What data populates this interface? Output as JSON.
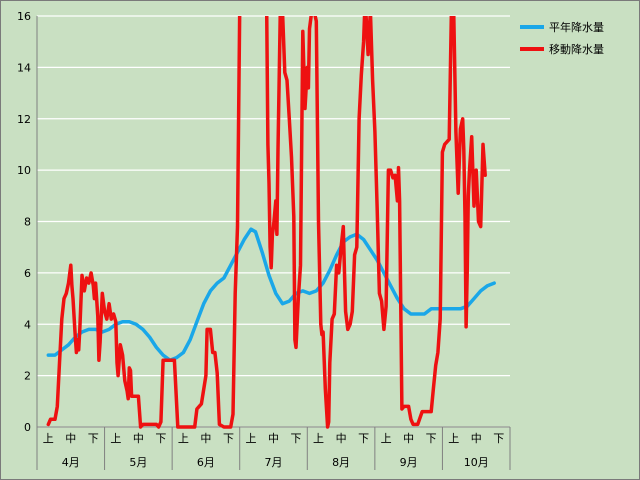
{
  "chart_data": {
    "type": "line",
    "ylim": [
      0,
      16
    ],
    "yticks": [
      0,
      2,
      4,
      6,
      8,
      10,
      12,
      14,
      16
    ],
    "grid": true,
    "legend_position": "top-right",
    "x_sub_labels": [
      "上",
      "中",
      "下",
      "上",
      "中",
      "下",
      "上",
      "中",
      "下",
      "上",
      "中",
      "下",
      "上",
      "中",
      "下",
      "上",
      "中",
      "下",
      "上",
      "中",
      "下"
    ],
    "x_month_labels": [
      "4月",
      "5月",
      "6月",
      "7月",
      "8月",
      "9月",
      "10月"
    ],
    "x_count": 21,
    "series": [
      {
        "name": "平年降水量",
        "color": "#1aa7e8",
        "points": [
          [
            0,
            2.8
          ],
          [
            0.3,
            2.8
          ],
          [
            0.6,
            3.0
          ],
          [
            0.9,
            3.2
          ],
          [
            1.2,
            3.5
          ],
          [
            1.5,
            3.7
          ],
          [
            1.8,
            3.8
          ],
          [
            2.1,
            3.8
          ],
          [
            2.4,
            3.7
          ],
          [
            2.7,
            3.8
          ],
          [
            3.0,
            4.0
          ],
          [
            3.3,
            4.1
          ],
          [
            3.6,
            4.1
          ],
          [
            3.9,
            4.0
          ],
          [
            4.2,
            3.8
          ],
          [
            4.5,
            3.5
          ],
          [
            4.8,
            3.1
          ],
          [
            5.1,
            2.8
          ],
          [
            5.4,
            2.6
          ],
          [
            5.7,
            2.7
          ],
          [
            6.0,
            2.9
          ],
          [
            6.3,
            3.4
          ],
          [
            6.6,
            4.1
          ],
          [
            6.9,
            4.8
          ],
          [
            7.2,
            5.3
          ],
          [
            7.5,
            5.6
          ],
          [
            7.8,
            5.8
          ],
          [
            8.1,
            6.3
          ],
          [
            8.4,
            6.8
          ],
          [
            8.7,
            7.3
          ],
          [
            9.0,
            7.7
          ],
          [
            9.2,
            7.6
          ],
          [
            9.5,
            6.8
          ],
          [
            9.8,
            5.9
          ],
          [
            10.1,
            5.2
          ],
          [
            10.4,
            4.8
          ],
          [
            10.7,
            4.9
          ],
          [
            11.0,
            5.2
          ],
          [
            11.3,
            5.3
          ],
          [
            11.6,
            5.2
          ],
          [
            11.9,
            5.3
          ],
          [
            12.2,
            5.6
          ],
          [
            12.5,
            6.1
          ],
          [
            12.8,
            6.7
          ],
          [
            13.1,
            7.2
          ],
          [
            13.4,
            7.4
          ],
          [
            13.7,
            7.5
          ],
          [
            14.0,
            7.3
          ],
          [
            14.3,
            6.9
          ],
          [
            14.6,
            6.5
          ],
          [
            14.9,
            6.0
          ],
          [
            15.2,
            5.5
          ],
          [
            15.5,
            5.0
          ],
          [
            15.8,
            4.6
          ],
          [
            16.1,
            4.4
          ],
          [
            16.4,
            4.4
          ],
          [
            16.7,
            4.4
          ],
          [
            17.0,
            4.6
          ],
          [
            17.3,
            4.6
          ],
          [
            17.6,
            4.6
          ],
          [
            18.0,
            4.6
          ],
          [
            18.3,
            4.6
          ],
          [
            18.6,
            4.7
          ],
          [
            18.9,
            5.0
          ],
          [
            19.2,
            5.3
          ],
          [
            19.5,
            5.5
          ],
          [
            19.8,
            5.6
          ]
        ]
      },
      {
        "name": "移動降水量",
        "color": "#ee1111",
        "points": [
          [
            0,
            0.1
          ],
          [
            0.1,
            0.3
          ],
          [
            0.3,
            0.3
          ],
          [
            0.4,
            0.8
          ],
          [
            0.5,
            2.5
          ],
          [
            0.6,
            4.2
          ],
          [
            0.7,
            5.0
          ],
          [
            0.8,
            5.2
          ],
          [
            0.9,
            5.6
          ],
          [
            1.0,
            6.3
          ],
          [
            1.05,
            5.5
          ],
          [
            1.1,
            5.0
          ],
          [
            1.2,
            3.5
          ],
          [
            1.25,
            2.9
          ],
          [
            1.3,
            3.4
          ],
          [
            1.35,
            3.0
          ],
          [
            1.4,
            3.8
          ],
          [
            1.5,
            5.9
          ],
          [
            1.6,
            5.3
          ],
          [
            1.7,
            5.8
          ],
          [
            1.8,
            5.6
          ],
          [
            1.9,
            6.0
          ],
          [
            2.0,
            5.5
          ],
          [
            2.05,
            5.0
          ],
          [
            2.1,
            5.6
          ],
          [
            2.2,
            4.3
          ],
          [
            2.25,
            2.6
          ],
          [
            2.3,
            3.3
          ],
          [
            2.4,
            5.2
          ],
          [
            2.5,
            4.5
          ],
          [
            2.6,
            4.2
          ],
          [
            2.7,
            4.8
          ],
          [
            2.8,
            4.2
          ],
          [
            2.9,
            4.4
          ],
          [
            3.0,
            4.1
          ],
          [
            3.05,
            2.5
          ],
          [
            3.1,
            2.0
          ],
          [
            3.2,
            3.2
          ],
          [
            3.3,
            2.8
          ],
          [
            3.4,
            1.8
          ],
          [
            3.5,
            1.4
          ],
          [
            3.55,
            1.1
          ],
          [
            3.6,
            2.3
          ],
          [
            3.65,
            2.2
          ],
          [
            3.7,
            1.2
          ],
          [
            3.8,
            1.2
          ],
          [
            4.0,
            1.2
          ],
          [
            4.05,
            0.6
          ],
          [
            4.1,
            0.0
          ],
          [
            4.2,
            0.1
          ],
          [
            4.4,
            0.1
          ],
          [
            4.6,
            0.1
          ],
          [
            4.8,
            0.1
          ],
          [
            4.9,
            0.0
          ],
          [
            5.0,
            0.2
          ],
          [
            5.1,
            2.6
          ],
          [
            5.3,
            2.6
          ],
          [
            5.6,
            2.6
          ],
          [
            5.75,
            0.0
          ],
          [
            6.0,
            0.0
          ],
          [
            6.3,
            0.0
          ],
          [
            6.5,
            0.0
          ],
          [
            6.6,
            0.7
          ],
          [
            6.8,
            0.9
          ],
          [
            7.0,
            2.0
          ],
          [
            7.05,
            3.8
          ],
          [
            7.2,
            3.8
          ],
          [
            7.3,
            2.9
          ],
          [
            7.4,
            2.9
          ],
          [
            7.5,
            2.1
          ],
          [
            7.6,
            0.1
          ],
          [
            7.8,
            0.0
          ],
          [
            8.0,
            0.0
          ],
          [
            8.1,
            0.0
          ],
          [
            8.2,
            0.5
          ],
          [
            8.3,
            5.2
          ],
          [
            8.4,
            7.8
          ],
          [
            8.5,
            16.2
          ],
          [
            9.1,
            16.2
          ],
          [
            9.2,
            16.2
          ],
          [
            9.4,
            16.2
          ],
          [
            9.7,
            16.2
          ],
          [
            9.75,
            11.0
          ],
          [
            9.8,
            9.5
          ],
          [
            9.85,
            7.0
          ],
          [
            9.9,
            6.2
          ],
          [
            9.95,
            7.5
          ],
          [
            10.0,
            7.8
          ],
          [
            10.1,
            8.8
          ],
          [
            10.15,
            7.5
          ],
          [
            10.2,
            10.8
          ],
          [
            10.3,
            16.2
          ],
          [
            10.4,
            16.2
          ],
          [
            10.5,
            13.8
          ],
          [
            10.6,
            13.5
          ],
          [
            10.7,
            12.0
          ],
          [
            10.8,
            10.5
          ],
          [
            10.9,
            8.2
          ],
          [
            10.95,
            3.4
          ],
          [
            11.0,
            3.1
          ],
          [
            11.1,
            5.0
          ],
          [
            11.2,
            6.3
          ],
          [
            11.3,
            15.4
          ],
          [
            11.4,
            12.4
          ],
          [
            11.5,
            14.0
          ],
          [
            11.55,
            13.2
          ],
          [
            11.6,
            15.5
          ],
          [
            11.7,
            16.2
          ],
          [
            11.8,
            16.2
          ],
          [
            11.9,
            15.8
          ],
          [
            12.0,
            8.0
          ],
          [
            12.1,
            4.0
          ],
          [
            12.15,
            3.6
          ],
          [
            12.2,
            3.7
          ],
          [
            12.3,
            1.5
          ],
          [
            12.4,
            0.0
          ],
          [
            12.45,
            0.2
          ],
          [
            12.5,
            2.5
          ],
          [
            12.6,
            4.2
          ],
          [
            12.7,
            4.4
          ],
          [
            12.8,
            6.3
          ],
          [
            12.9,
            6.0
          ],
          [
            13.0,
            7.0
          ],
          [
            13.1,
            7.8
          ],
          [
            13.15,
            6.0
          ],
          [
            13.2,
            4.5
          ],
          [
            13.3,
            3.8
          ],
          [
            13.4,
            4.0
          ],
          [
            13.5,
            4.5
          ],
          [
            13.6,
            6.7
          ],
          [
            13.7,
            7.0
          ],
          [
            13.8,
            12.0
          ],
          [
            13.9,
            13.7
          ],
          [
            14.0,
            15.0
          ],
          [
            14.05,
            16.2
          ],
          [
            14.1,
            16.2
          ],
          [
            14.2,
            14.5
          ],
          [
            14.3,
            16.2
          ],
          [
            14.4,
            13.5
          ],
          [
            14.5,
            11.5
          ],
          [
            14.6,
            8.6
          ],
          [
            14.7,
            5.2
          ],
          [
            14.8,
            4.9
          ],
          [
            14.9,
            3.8
          ],
          [
            15.0,
            4.7
          ],
          [
            15.1,
            10.0
          ],
          [
            15.2,
            10.0
          ],
          [
            15.3,
            9.7
          ],
          [
            15.4,
            9.8
          ],
          [
            15.5,
            8.8
          ],
          [
            15.55,
            10.1
          ],
          [
            15.6,
            8.8
          ],
          [
            15.7,
            0.7
          ],
          [
            15.8,
            0.8
          ],
          [
            16.0,
            0.8
          ],
          [
            16.1,
            0.3
          ],
          [
            16.2,
            0.1
          ],
          [
            16.4,
            0.1
          ],
          [
            16.6,
            0.6
          ],
          [
            17.0,
            0.6
          ],
          [
            17.1,
            1.5
          ],
          [
            17.2,
            2.4
          ],
          [
            17.3,
            2.9
          ],
          [
            17.4,
            4.2
          ],
          [
            17.5,
            10.7
          ],
          [
            17.6,
            11.0
          ],
          [
            17.8,
            11.2
          ],
          [
            17.9,
            16.2
          ],
          [
            18.0,
            16.2
          ],
          [
            18.1,
            11.5
          ],
          [
            18.2,
            9.1
          ],
          [
            18.3,
            11.6
          ],
          [
            18.4,
            12.0
          ],
          [
            18.45,
            10.8
          ],
          [
            18.5,
            8.2
          ],
          [
            18.55,
            3.9
          ],
          [
            18.6,
            6.0
          ],
          [
            18.65,
            9.0
          ],
          [
            18.7,
            10.0
          ],
          [
            18.8,
            11.3
          ],
          [
            18.9,
            8.6
          ],
          [
            19.0,
            10.0
          ],
          [
            19.1,
            8.0
          ],
          [
            19.2,
            7.8
          ],
          [
            19.3,
            11.0
          ],
          [
            19.4,
            9.8
          ]
        ]
      }
    ]
  }
}
